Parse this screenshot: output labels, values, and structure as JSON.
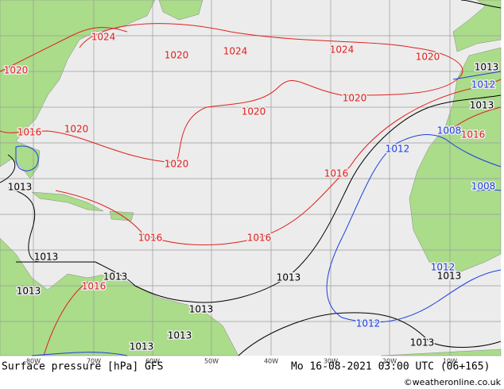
{
  "map": {
    "title": "Surface pressure [hPa] GFS",
    "datetime": "Mo 16-08-2021 03:00 UTC (06+165)",
    "credit": "©weatheronline.co.uk",
    "longitudes": [
      "80W",
      "70W",
      "60W",
      "50W",
      "40W",
      "30W",
      "20W",
      "10W"
    ],
    "red_isobars": [
      "1024",
      "1020",
      "1020",
      "1024",
      "1024",
      "1020",
      "1020",
      "1020",
      "1016",
      "1020",
      "1020",
      "1016",
      "1016",
      "1016",
      "1016",
      "1016"
    ],
    "black_isobars": [
      "1013",
      "1013",
      "1013",
      "1013",
      "1013",
      "1013",
      "1013",
      "1013",
      "1013",
      "1013",
      "1013",
      "1013"
    ],
    "blue_isobars": [
      "1012",
      "1008",
      "1008",
      "1012",
      "1012",
      "1012"
    ]
  }
}
